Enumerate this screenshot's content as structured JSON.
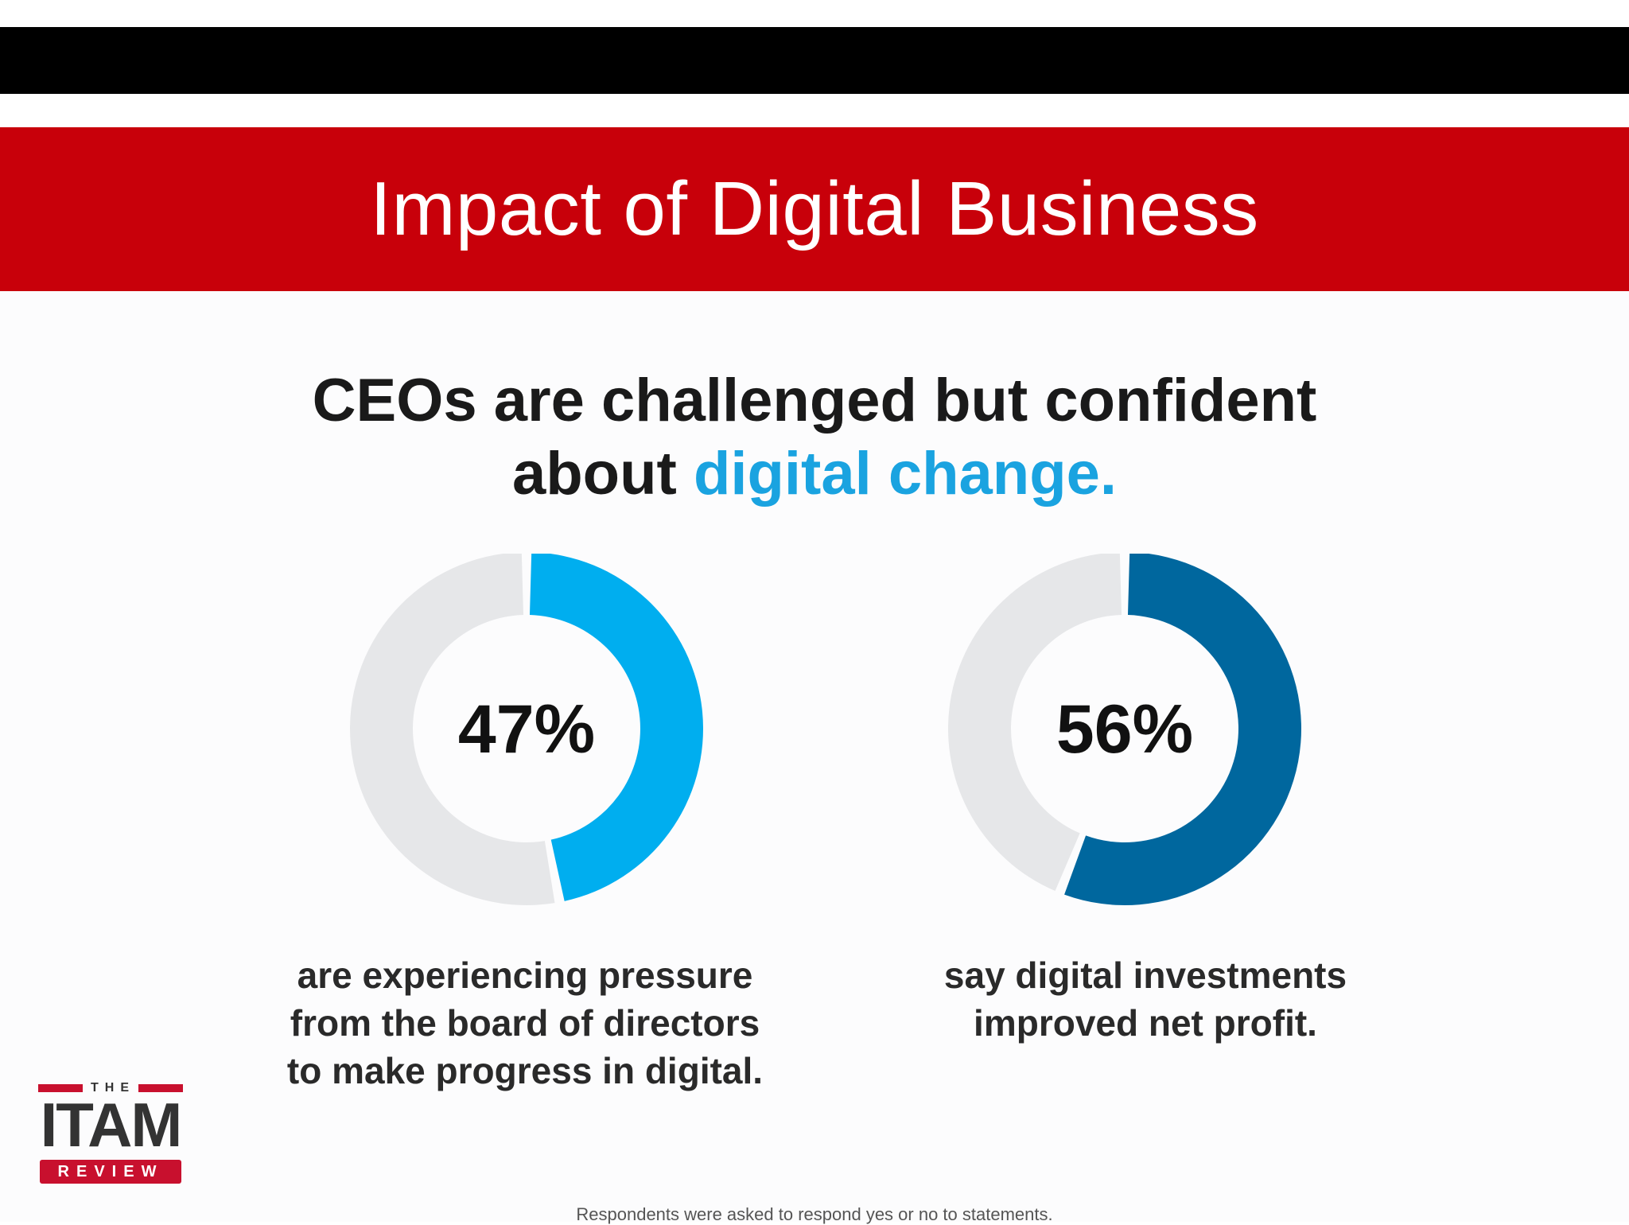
{
  "slide": {
    "title": "Impact of Digital Business",
    "colors": {
      "banner": "#c8000a",
      "top_bar": "#000000"
    }
  },
  "headline": {
    "line1": "CEOs are challenged but confident",
    "line2_lead": "about ",
    "line2_accent": "digital change.",
    "accent_color": "#1aa3e0"
  },
  "chart_data": [
    {
      "type": "pie",
      "variant": "donut",
      "value": 47,
      "center_label": "47%",
      "caption": "are experiencing pressure from the board of directors to make progress in digital.",
      "colors": {
        "value": "#00aeef",
        "remainder": "#e6e7e9"
      }
    },
    {
      "type": "pie",
      "variant": "donut",
      "value": 56,
      "center_label": "56%",
      "caption": "say digital investments improved net profit.",
      "colors": {
        "value": "#00679e",
        "remainder": "#e6e7e9"
      }
    }
  ],
  "footnote": "Respondents were asked to respond yes or no to statements.",
  "logo": {
    "top": "THE",
    "main": "ITAM",
    "bottom": "REVIEW",
    "color": "#c8102e"
  }
}
